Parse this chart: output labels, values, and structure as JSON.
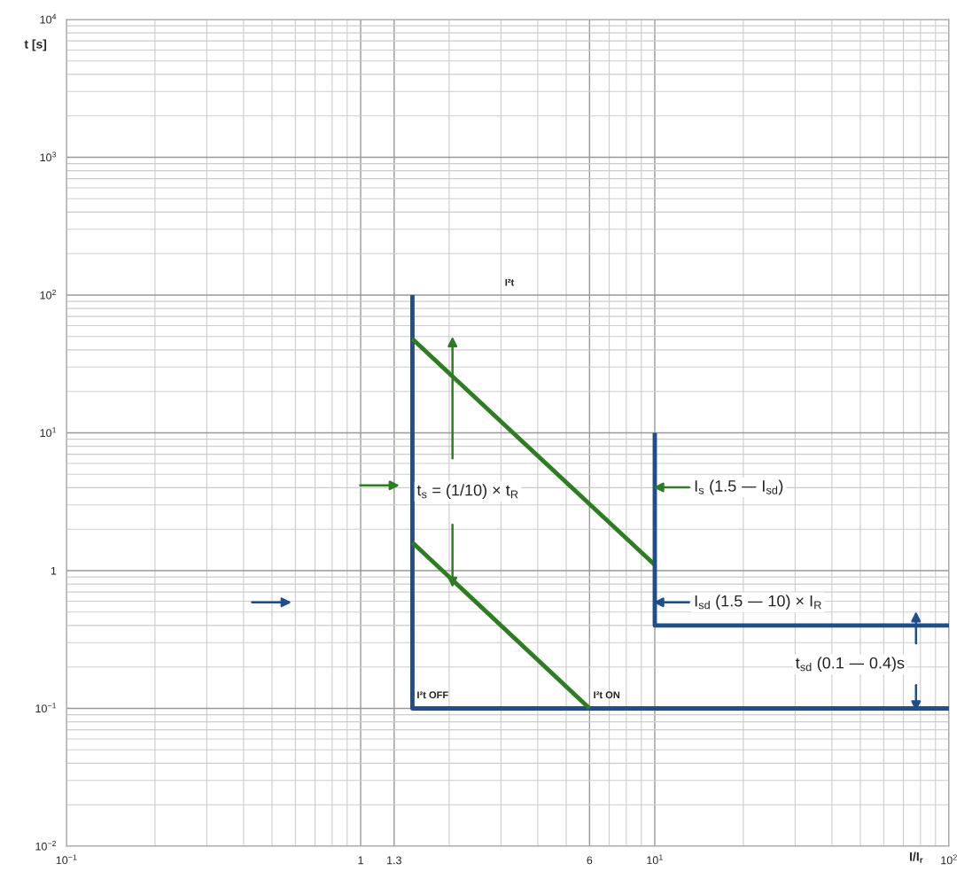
{
  "chart_data": {
    "type": "line",
    "xlabel": "I/I$_{r}$",
    "ylabel": "t [s]",
    "log": "xy",
    "grid": true,
    "marker": "none",
    "line_style": "solid",
    "xlim": [
      0.1,
      100
    ],
    "ylim": [
      0.01,
      10000
    ],
    "xticks": [
      {
        "value": 0.1,
        "label": "10$^{−1}$"
      },
      1,
      1.3,
      6,
      {
        "value": 10,
        "label": "10$^{1}$"
      },
      {
        "value": 100,
        "label": "10$^{2}$"
      }
    ],
    "yticks": [
      {
        "value": 0.01,
        "label": "10$^{−2}$"
      },
      {
        "value": 0.1,
        "label": "10$^{−1}$"
      },
      1,
      {
        "value": 10,
        "label": "10$^{1}$"
      },
      {
        "value": 100,
        "label": "10$^{2}$"
      },
      {
        "value": 1000,
        "label": "10$^{3}$"
      },
      {
        "value": 10000,
        "label": "10$^{4}$"
      }
    ],
    "series": [
      {
        "color": "#1f4e89",
        "x": [
          1.5,
          1.5,
          100
        ],
        "values": [
          100,
          0.1,
          0.1
        ]
      },
      {
        "color": "#2e7d22",
        "x": [
          1.5,
          10
        ],
        "values": [
          48,
          1.1
        ]
      },
      {
        "color": "#2e7d22",
        "x": [
          1.5,
          6
        ],
        "values": [
          1.6,
          0.1
        ]
      },
      {
        "color": "#1f4e89",
        "x": [
          10,
          10,
          100
        ],
        "values": [
          10,
          0.4,
          0.4
        ]
      }
    ],
    "annotations": [
      "I²t",
      "I²t OFF",
      "I²t ON",
      "t$_{s}$ = (1/10) × t$_{R}$",
      "I$_{s}$ (1.5 — I$_{sd}$)",
      "I$_{sd}$ (1.5 — 10) × I$_{R}$",
      "t$_{sd}$ (0.1 — 0.4)s"
    ]
  }
}
